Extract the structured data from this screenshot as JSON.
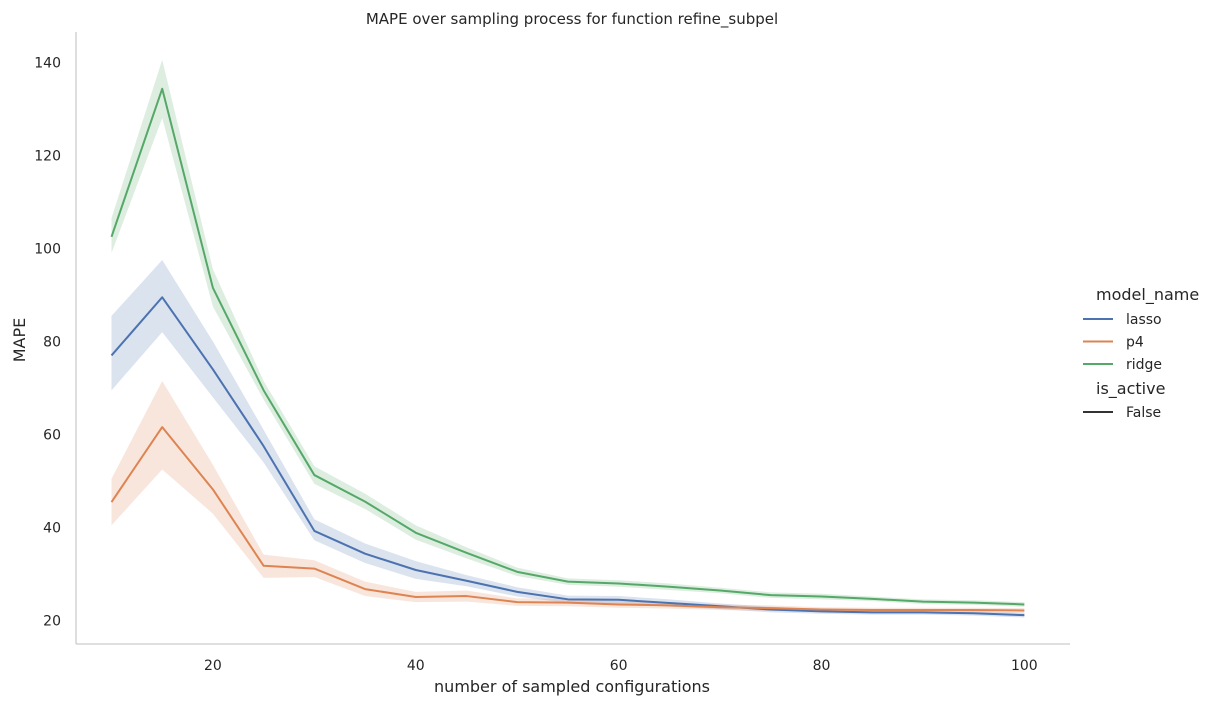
{
  "chart_data": {
    "type": "line",
    "title": "MAPE over sampling process for function refine_subpel",
    "xlabel": "number of sampled configurations",
    "ylabel": "MAPE",
    "xlim": [
      6.5,
      104.5
    ],
    "ylim": [
      15,
      146.5
    ],
    "xticks": [
      20,
      40,
      60,
      80,
      100
    ],
    "yticks": [
      20,
      40,
      60,
      80,
      100,
      120,
      140
    ],
    "grid": false,
    "legend_position": "right",
    "legend": {
      "hue_title": "model_name",
      "style_title": "is_active",
      "style_entries": [
        "False"
      ]
    },
    "x": [
      10,
      15,
      20,
      25,
      30,
      35,
      40,
      45,
      50,
      55,
      60,
      65,
      70,
      75,
      80,
      85,
      90,
      95,
      100
    ],
    "series": [
      {
        "name": "lasso",
        "color": "#4c72b0",
        "values": [
          77.0,
          89.5,
          74.0,
          57.5,
          39.3,
          34.4,
          30.9,
          28.6,
          26.2,
          24.6,
          24.5,
          23.8,
          23.1,
          22.4,
          22.0,
          21.8,
          21.8,
          21.6,
          21.2
        ],
        "lower": [
          69.5,
          82.0,
          68.0,
          54.0,
          37.3,
          32.4,
          29.0,
          27.4,
          25.2,
          23.8,
          23.7,
          23.0,
          22.5,
          21.8,
          21.5,
          21.3,
          21.3,
          21.1,
          20.7
        ],
        "upper": [
          85.5,
          97.5,
          80.0,
          61.0,
          41.8,
          36.6,
          32.8,
          29.8,
          27.2,
          25.4,
          25.3,
          24.6,
          23.7,
          23.0,
          22.5,
          22.3,
          22.3,
          22.1,
          21.7
        ]
      },
      {
        "name": "p4",
        "color": "#dd8452",
        "values": [
          45.5,
          61.6,
          48.2,
          31.8,
          31.2,
          26.8,
          25.1,
          25.3,
          24.0,
          23.9,
          23.5,
          23.3,
          22.9,
          22.7,
          22.4,
          22.3,
          22.3,
          22.3,
          22.2
        ],
        "lower": [
          40.5,
          52.5,
          43.0,
          29.2,
          29.4,
          25.3,
          24.0,
          24.1,
          23.2,
          23.1,
          22.8,
          22.6,
          22.3,
          22.1,
          21.9,
          21.8,
          21.8,
          21.8,
          21.7
        ],
        "upper": [
          50.5,
          71.5,
          53.5,
          34.2,
          33.0,
          28.4,
          26.2,
          26.5,
          24.8,
          24.7,
          24.2,
          24.0,
          23.5,
          23.3,
          22.9,
          22.8,
          22.8,
          22.8,
          22.7
        ]
      },
      {
        "name": "ridge",
        "color": "#55a868",
        "values": [
          102.5,
          134.3,
          91.5,
          69.5,
          51.3,
          45.6,
          38.9,
          34.6,
          30.5,
          28.4,
          28.0,
          27.3,
          26.5,
          25.5,
          25.2,
          24.7,
          24.1,
          23.9,
          23.5
        ],
        "lower": [
          99.0,
          128.0,
          87.5,
          67.5,
          49.4,
          44.0,
          37.4,
          33.4,
          29.6,
          27.7,
          27.3,
          26.6,
          25.9,
          24.9,
          24.6,
          24.2,
          23.6,
          23.4,
          23.0
        ],
        "upper": [
          106.5,
          140.5,
          95.5,
          71.5,
          53.2,
          47.3,
          40.5,
          35.8,
          31.4,
          29.1,
          28.7,
          28.0,
          27.1,
          26.1,
          25.8,
          25.2,
          24.6,
          24.4,
          24.0
        ]
      }
    ]
  }
}
